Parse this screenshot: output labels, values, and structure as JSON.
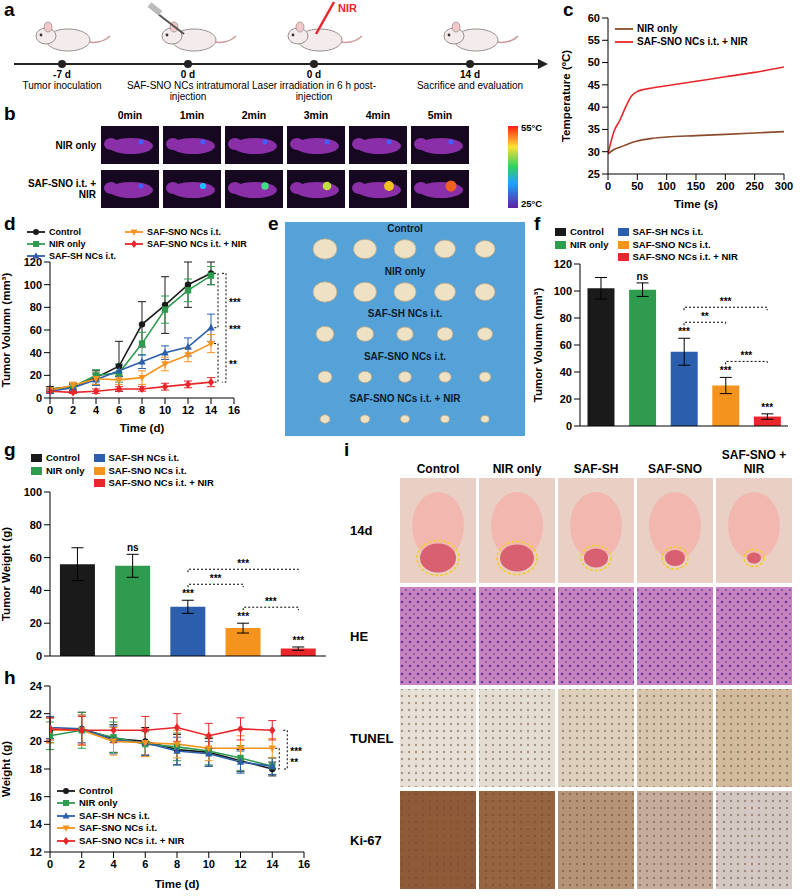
{
  "panels": {
    "a": {
      "panel": "a",
      "laser": "NIR",
      "timeline": [
        {
          "day": "-7 d",
          "event": "Tumor inoculation"
        },
        {
          "day": "0 d",
          "event": "SAF-SNO NCs intratumoral injection"
        },
        {
          "day": "0 d",
          "event": "Laser irradiation in 6 h post-injection"
        },
        {
          "day": "14 d",
          "event": "Sacrifice and evaluation"
        }
      ]
    },
    "b": {
      "panel": "b",
      "columns": [
        "0min",
        "1min",
        "2min",
        "3min",
        "4min",
        "5min"
      ],
      "rows": [
        "NIR only",
        "SAF-SNO i.t. + NIR"
      ],
      "colorbar_labels": [
        "55°C",
        "25°C"
      ]
    },
    "e": {
      "panel": "e",
      "rows": [
        "Control",
        "NIR only",
        "SAF-SH NCs i.t.",
        "SAF-SNO NCs i.t.",
        "SAF-SNO NCs i.t. + NIR"
      ]
    },
    "i": {
      "panel": "i",
      "columns": [
        "Control",
        "NIR only",
        "SAF-SH",
        "SAF-SNO",
        "SAF-SNO + NIR"
      ],
      "rows": [
        "14d",
        "HE",
        "TUNEL",
        "Ki-67"
      ]
    }
  },
  "chart_data": [
    {
      "panel": "c",
      "type": "line",
      "x_label": "Time (s)",
      "y_label": "Temperature (ºC)",
      "x": [
        0,
        10,
        20,
        30,
        40,
        50,
        75,
        100,
        150,
        200,
        250,
        300
      ],
      "series": [
        {
          "name": "NIR only",
          "color": "#8b4a2b",
          "values": [
            29.5,
            30.5,
            31,
            31.5,
            32,
            32.4,
            33,
            33.3,
            33.6,
            33.9,
            34.2,
            34.5
          ]
        },
        {
          "name": "SAF-SNO NCs i.t. + NIR",
          "color": "#e8262b",
          "values": [
            29.5,
            34.5,
            37,
            40,
            42.5,
            43.5,
            44.3,
            44.8,
            45.8,
            46.8,
            47.8,
            49
          ]
        }
      ],
      "xlim": [
        0,
        300
      ],
      "xticks": [
        0,
        50,
        100,
        150,
        200,
        250,
        300
      ],
      "ylim": [
        25,
        60
      ],
      "yticks": [
        25,
        30,
        35,
        40,
        45,
        50,
        55,
        60
      ],
      "grid": false,
      "legend": "upper left"
    },
    {
      "panel": "d",
      "type": "line",
      "x_label": "Time (d)",
      "y_label": "Tumor Volumn (mm³)",
      "x": [
        0,
        2,
        4,
        6,
        8,
        10,
        12,
        14
      ],
      "series": [
        {
          "name": "Control",
          "color": "#1a1a1a",
          "marker": "circle",
          "values": [
            8,
            10,
            18,
            28,
            65,
            82,
            100,
            110
          ],
          "errors": [
            2,
            3,
            6,
            22,
            20,
            25,
            20,
            10
          ]
        },
        {
          "name": "NIR only",
          "color": "#2e9b4f",
          "marker": "square",
          "values": [
            7,
            10,
            20,
            22,
            48,
            78,
            95,
            108
          ],
          "errors": [
            2,
            3,
            5,
            8,
            10,
            12,
            10,
            8
          ]
        },
        {
          "name": "SAF-SH NCs i.t.",
          "color": "#2b5fad",
          "marker": "triangle-up",
          "values": [
            6,
            9,
            16,
            24,
            32,
            40,
            45,
            62
          ],
          "errors": [
            2,
            3,
            5,
            5,
            6,
            6,
            8,
            12
          ]
        },
        {
          "name": "SAF-SNO NCs i.t.",
          "color": "#f5931f",
          "marker": "triangle-down",
          "values": [
            7,
            11,
            17,
            16,
            18,
            30,
            38,
            48
          ],
          "errors": [
            2,
            3,
            5,
            4,
            6,
            6,
            6,
            8
          ]
        },
        {
          "name": "SAF-SNO NCs i.t. + NIR",
          "color": "#e8262b",
          "marker": "diamond",
          "values": [
            6,
            5,
            6,
            8,
            8,
            10,
            12,
            14
          ],
          "errors": [
            1,
            1,
            2,
            2,
            2,
            3,
            3,
            4
          ]
        }
      ],
      "comparisons": [
        {
          "from": "Control",
          "to": "SAF-SH NCs i.t.",
          "label": "***"
        },
        {
          "from": "Control",
          "to": "SAF-SNO NCs i.t. + NIR",
          "label": "***"
        },
        {
          "from": "SAF-SNO NCs i.t.",
          "to": "SAF-SNO NCs i.t. + NIR",
          "label": "**"
        }
      ],
      "xlim": [
        0,
        16
      ],
      "xticks": [
        0,
        2,
        4,
        6,
        8,
        10,
        12,
        14,
        16
      ],
      "ylim": [
        0,
        120
      ],
      "yticks": [
        0,
        20,
        40,
        60,
        80,
        100,
        120
      ],
      "grid": false,
      "legend": "top"
    },
    {
      "panel": "f",
      "type": "bar",
      "y_label": "Tumor Volumn (mm³)",
      "categories": [
        "Control",
        "NIR only",
        "SAF-SH NCs i.t.",
        "SAF-SNO NCs i.t.",
        "SAF-SNO NCs i.t. + NIR"
      ],
      "values": [
        102,
        101,
        55,
        30,
        7
      ],
      "errors": [
        8,
        5,
        10,
        6,
        2
      ],
      "colors": [
        "#1a1a1a",
        "#2e9b4f",
        "#2b5fad",
        "#f5931f",
        "#e8262b"
      ],
      "significance": [
        null,
        "ns",
        "***",
        "***",
        "***"
      ],
      "comparisons": [
        {
          "from": "SAF-SH NCs i.t.",
          "to": "SAF-SNO NCs i.t.",
          "label": "**"
        },
        {
          "from": "SAF-SNO NCs i.t.",
          "to": "SAF-SNO NCs i.t. + NIR",
          "label": "***"
        },
        {
          "from": "SAF-SH NCs i.t.",
          "to": "SAF-SNO NCs i.t. + NIR",
          "label": "***"
        }
      ],
      "ylim": [
        0,
        120
      ],
      "yticks": [
        0,
        20,
        40,
        60,
        80,
        100,
        120
      ],
      "grid": false,
      "legend": "top",
      "tick_labels": "y"
    },
    {
      "panel": "g",
      "type": "bar",
      "y_label": "Tumor Weight (g)",
      "categories": [
        "Control",
        "NIR only",
        "SAF-SH NCs i.t.",
        "SAF-SNO NCs i.t.",
        "SAF-SNO NCs i.t. + NIR"
      ],
      "values": [
        56,
        55,
        30,
        17,
        4.5
      ],
      "errors": [
        10,
        7,
        4,
        3,
        1
      ],
      "colors": [
        "#1a1a1a",
        "#2e9b4f",
        "#2b5fad",
        "#f5931f",
        "#e8262b"
      ],
      "significance": [
        null,
        "ns",
        "***",
        "***",
        "***"
      ],
      "comparisons": [
        {
          "from": "SAF-SH NCs i.t.",
          "to": "SAF-SNO NCs i.t.",
          "label": "***"
        },
        {
          "from": "SAF-SNO NCs i.t.",
          "to": "SAF-SNO NCs i.t. + NIR",
          "label": "***"
        },
        {
          "from": "SAF-SH NCs i.t.",
          "to": "SAF-SNO NCs i.t. + NIR",
          "label": "***"
        }
      ],
      "ylim": [
        0,
        100
      ],
      "yticks": [
        0,
        20,
        40,
        60,
        80,
        100
      ],
      "grid": false,
      "legend": "top",
      "tick_labels": "y"
    },
    {
      "panel": "h",
      "type": "line",
      "x_label": "Time (d)",
      "y_label": "Weight (g)",
      "x": [
        0,
        2,
        4,
        6,
        8,
        10,
        12,
        14
      ],
      "series": [
        {
          "name": "Control",
          "color": "#1a1a1a",
          "marker": "circle",
          "values": [
            20.8,
            20.9,
            20.2,
            20.0,
            19.4,
            19.2,
            18.6,
            18.0
          ],
          "errors": [
            0.9,
            1.2,
            1.0,
            1.0,
            1.1,
            1.0,
            0.8,
            0.5
          ]
        },
        {
          "name": "NIR only",
          "color": "#2e9b4f",
          "marker": "square",
          "values": [
            20.4,
            20.8,
            20.3,
            19.8,
            19.6,
            19.3,
            18.8,
            18.2
          ],
          "errors": [
            1.0,
            1.3,
            1.1,
            0.9,
            1.0,
            1.0,
            0.9,
            0.6
          ]
        },
        {
          "name": "SAF-SH NCs i.t.",
          "color": "#2b5fad",
          "marker": "triangle-up",
          "values": [
            21.0,
            20.9,
            20.1,
            19.9,
            19.3,
            19.1,
            18.5,
            18.2
          ],
          "errors": [
            0.8,
            1.0,
            1.0,
            0.9,
            1.0,
            0.9,
            0.8,
            0.6
          ]
        },
        {
          "name": "SAF-SNO NCs i.t.",
          "color": "#f5931f",
          "marker": "triangle-down",
          "values": [
            20.8,
            20.8,
            20.0,
            19.9,
            19.8,
            19.5,
            19.5,
            19.5
          ],
          "errors": [
            0.9,
            1.1,
            1.0,
            1.0,
            1.0,
            0.9,
            0.9,
            0.7
          ]
        },
        {
          "name": "SAF-SNO NCs i.t. + NIR",
          "color": "#e8262b",
          "marker": "diamond",
          "values": [
            20.9,
            20.8,
            20.8,
            20.8,
            21.0,
            20.4,
            20.9,
            20.8
          ],
          "errors": [
            0.8,
            1.0,
            0.9,
            1.0,
            1.0,
            0.9,
            0.8,
            0.7
          ]
        }
      ],
      "comparisons": [
        {
          "from": "Control",
          "to": "SAF-SNO NCs i.t. + NIR",
          "label": "***"
        },
        {
          "from": "Control",
          "to": "SAF-SNO NCs i.t.",
          "label": "**"
        }
      ],
      "xlim": [
        0,
        16
      ],
      "xticks": [
        0,
        2,
        4,
        6,
        8,
        10,
        12,
        14,
        16
      ],
      "ylim": [
        12,
        24
      ],
      "yticks": [
        12,
        14,
        16,
        18,
        20,
        22,
        24
      ],
      "grid": false,
      "legend": "lower left"
    }
  ]
}
